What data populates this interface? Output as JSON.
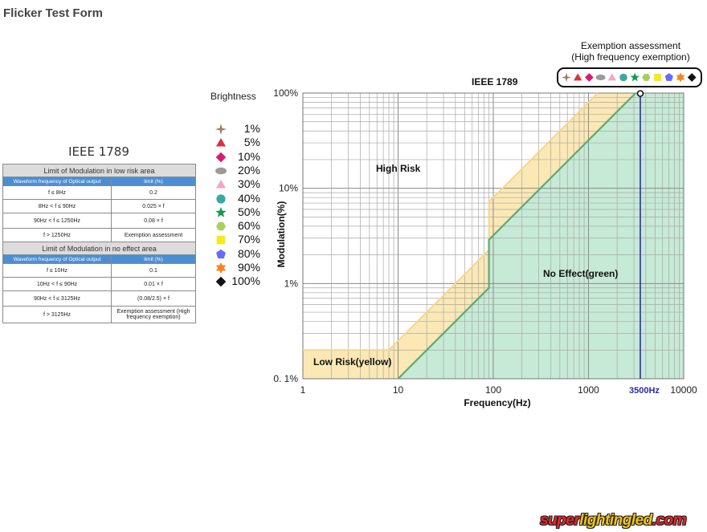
{
  "page_title": "Flicker Test Form",
  "standard_table": {
    "heading": "IEEE 1789",
    "low_risk": {
      "title": "Limit of Modulation in low risk area",
      "col_headers": [
        "Waveform frequency of Optical output",
        "limit (%)"
      ],
      "rows": [
        [
          "f  ≤ 8Hz",
          "0.2"
        ],
        [
          "8Hz <  f  ≤ 90Hz",
          "0.025 × f"
        ],
        [
          "90Hz <  f  ≤ 1250Hz",
          "0.08 × f"
        ],
        [
          "f  > 1250Hz",
          "Exemption assessment"
        ]
      ]
    },
    "no_effect": {
      "title": "Limit of Modulation in no effect area",
      "col_headers": [
        "Waveform frequency of Optical output",
        "limit (%)"
      ],
      "rows": [
        [
          "f  ≤ 10Hz",
          "0.1"
        ],
        [
          "10Hz < f  ≤ 90Hz",
          "0.01 × f"
        ],
        [
          "90Hz <  f  ≤ 3125Hz",
          "(0.08/2.5)  ×   f"
        ],
        [
          "f  > 3125Hz",
          "Exemption assessment (High frequency exemption)"
        ]
      ]
    }
  },
  "brightness_legend": {
    "title": "Brightness",
    "items": [
      {
        "label": "1%",
        "shape": "four-point-star",
        "color": "#a77a6a"
      },
      {
        "label": "5%",
        "shape": "triangle",
        "color": "#d6343c"
      },
      {
        "label": "10%",
        "shape": "diamond",
        "color": "#d81b74"
      },
      {
        "label": "20%",
        "shape": "ellipse",
        "color": "#9a9a9a"
      },
      {
        "label": "30%",
        "shape": "triangle",
        "color": "#f3a6c6"
      },
      {
        "label": "40%",
        "shape": "circle",
        "color": "#3aa9a6"
      },
      {
        "label": "50%",
        "shape": "star",
        "color": "#129a4a"
      },
      {
        "label": "60%",
        "shape": "hexagon",
        "color": "#a9cf5a"
      },
      {
        "label": "70%",
        "shape": "square",
        "color": "#f6ea1a"
      },
      {
        "label": "80%",
        "shape": "pentagon",
        "color": "#6b6bf0"
      },
      {
        "label": "90%",
        "shape": "six-point-star",
        "color": "#f5841f"
      },
      {
        "label": "100%",
        "shape": "diamond",
        "color": "#111111"
      }
    ]
  },
  "exemption": {
    "title_line1": "Exemption assessment",
    "title_line2": "(High frequency exemption)"
  },
  "chart_data": {
    "type": "area",
    "title": "IEEE 1789",
    "xlabel": "Frequency(Hz)",
    "ylabel": "Modulation(%)",
    "x_scale": "log",
    "y_scale": "log",
    "xlim": [
      1,
      10000
    ],
    "ylim": [
      0.1,
      100
    ],
    "x_ticks": [
      "1",
      "10",
      "100",
      "1000",
      "10000"
    ],
    "y_ticks": [
      "0. 1%",
      "1%",
      "10%",
      "100%"
    ],
    "grid": true,
    "regions": [
      {
        "name": "High Risk",
        "label": "High Risk",
        "color": "#ffffff"
      },
      {
        "name": "Low Risk",
        "label": "Low Risk(yellow)",
        "color": "#fbe8b4",
        "boundary_x": [
          1,
          8,
          90,
          90,
          1250
        ],
        "boundary_y": [
          0.2,
          0.2,
          2.25,
          7.2,
          100
        ]
      },
      {
        "name": "No Effect",
        "label": "No Effect(green)",
        "color": "#c6ead6",
        "boundary_x": [
          10,
          90,
          90,
          3125
        ],
        "boundary_y": [
          0.1,
          0.9,
          2.88,
          100
        ]
      }
    ],
    "marker_line": {
      "x": 3500,
      "label": "3500Hz",
      "color": "#2a2ab0"
    },
    "measured_point": {
      "x": 3500,
      "y": 100
    }
  }
}
